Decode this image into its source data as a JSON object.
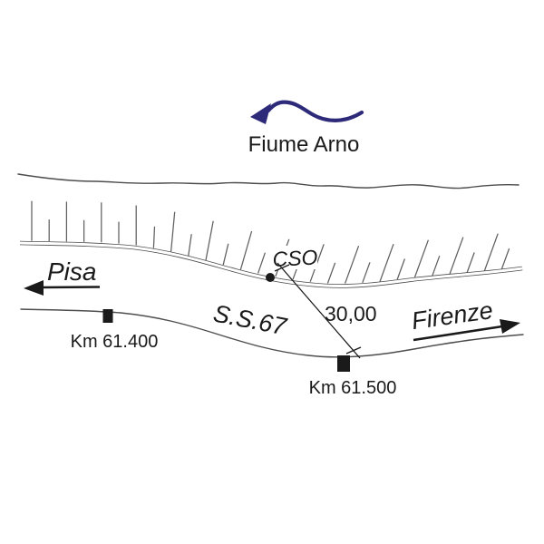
{
  "diagram": {
    "river": {
      "label": "Fiume Arno"
    },
    "directions": {
      "west": "Pisa",
      "east": "Firenze"
    },
    "road": {
      "name": "S.S.67"
    },
    "survey": {
      "point_label": "CSO",
      "distance_label": "30,00"
    },
    "km_markers": [
      {
        "label": "Km 61.400"
      },
      {
        "label": "Km 61.500"
      }
    ],
    "colors": {
      "line_gray": "#4d4d4d",
      "hatch_gray": "#5f5f5f",
      "ink_black": "#1a1a1a",
      "river_arrow_navy": "#2e2a7a",
      "background": "#ffffff"
    }
  }
}
